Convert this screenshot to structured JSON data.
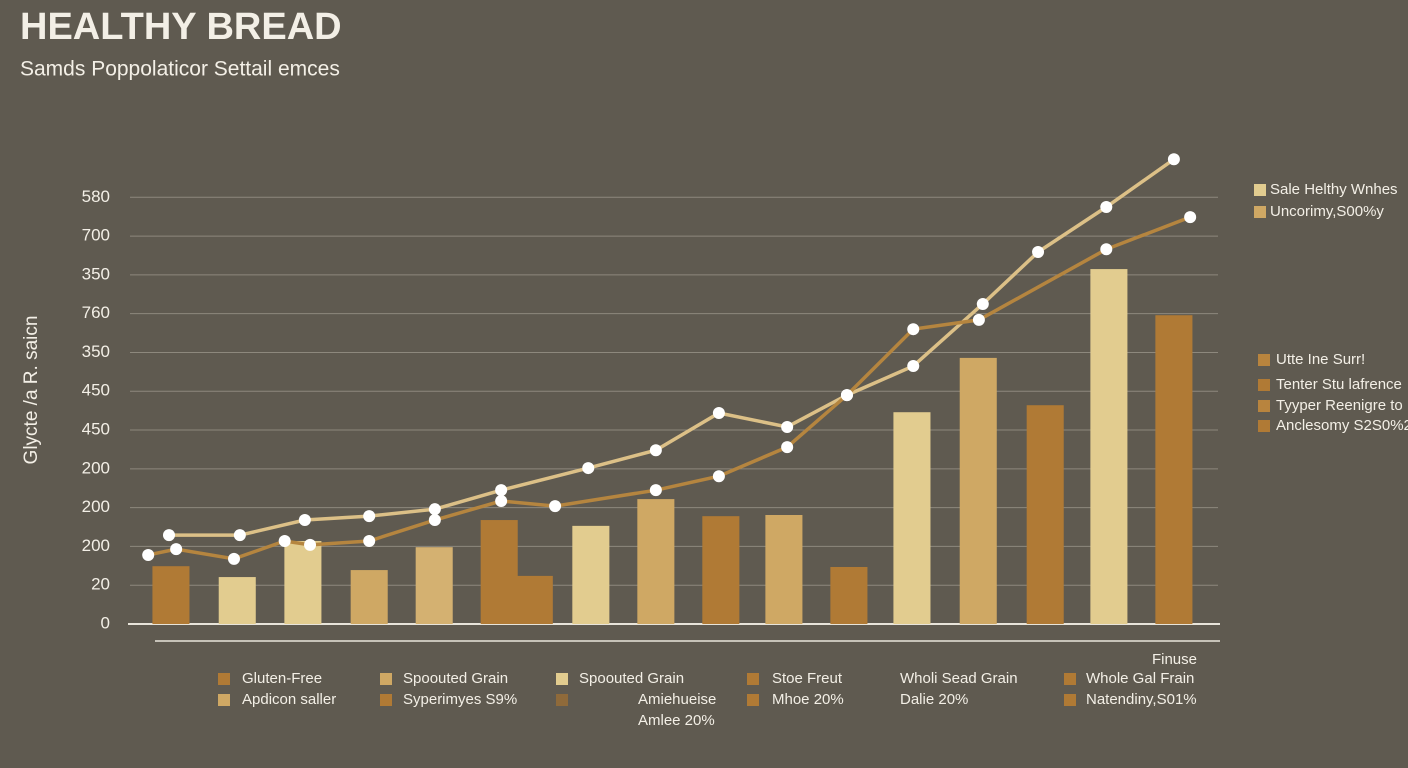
{
  "chart_data": {
    "type": "bar-line",
    "title": "HEALTHY BREAD",
    "subtitle": "Samds Poppolaticor Settail emces",
    "y_label": "Glycte /a R. saicn",
    "x_note": "Finuse",
    "xlim": [
      0,
      16.8
    ],
    "ylim": [
      0,
      12.4
    ],
    "yticks": [
      0,
      {
        "value": 1,
        "label": "20"
      },
      {
        "value": 2,
        "label": "200"
      },
      {
        "value": 3,
        "label": "200"
      },
      {
        "value": 4,
        "label": "200"
      },
      {
        "value": 5,
        "label": "450"
      },
      {
        "value": 6,
        "label": "450"
      },
      {
        "value": 7,
        "label": "350"
      },
      {
        "value": 8,
        "label": "760"
      },
      {
        "value": 9,
        "label": "350"
      },
      {
        "value": 10,
        "label": "700"
      },
      {
        "value": 11,
        "label": "580"
      }
    ],
    "grid": true,
    "bars": {
      "x": [
        0.63,
        1.65,
        2.66,
        3.68,
        4.68,
        5.68,
        6.22,
        7.09,
        8.09,
        9.09,
        10.06,
        11.06,
        12.03,
        13.05,
        14.08,
        15.06,
        16.06
      ],
      "values": [
        1.49,
        1.21,
        2.14,
        1.39,
        1.98,
        2.68,
        1.24,
        2.53,
        3.22,
        2.78,
        2.81,
        1.47,
        5.46,
        6.86,
        5.64,
        9.15,
        7.96
      ],
      "colors": [
        "#b07a35",
        "#e2cc8f",
        "#e2cc8f",
        "#cfa864",
        "#d4b171",
        "#b07a35",
        "#b07a35",
        "#e2cc8f",
        "#cfa864",
        "#b07a35",
        "#cfa864",
        "#b07a35",
        "#e2cc8f",
        "#cfa864",
        "#b07a35",
        "#e2cc8f",
        "#b07a35"
      ]
    },
    "series": [
      {
        "color": "#dcc087",
        "x": [
          0.6,
          1.69,
          2.69,
          3.68,
          4.69,
          5.71,
          7.05,
          8.09,
          9.06,
          10.11,
          11.03,
          12.05,
          13.12,
          13.97,
          15.02,
          16.06
        ],
        "values": [
          2.29,
          2.29,
          2.68,
          2.78,
          2.96,
          3.45,
          4.02,
          4.48,
          5.44,
          5.08,
          5.9,
          6.65,
          8.25,
          9.59,
          10.75,
          11.98
        ]
      },
      {
        "color": "#b5853f",
        "x": [
          0.28,
          0.71,
          1.6,
          2.38,
          2.77,
          3.68,
          4.69,
          5.71,
          6.54,
          8.09,
          9.06,
          10.11,
          11.03,
          12.05,
          13.06,
          15.02,
          16.31
        ],
        "values": [
          1.78,
          1.93,
          1.68,
          2.14,
          2.04,
          2.14,
          2.68,
          3.17,
          3.04,
          3.45,
          3.81,
          4.56,
          5.9,
          7.6,
          7.84,
          9.66,
          10.49
        ]
      }
    ],
    "legends": [
      {
        "items": [
          {
            "label": "Sale Helthy Wnhes",
            "color": "#e2cc8f"
          },
          {
            "label": "Uncorimy,S00%y",
            "color": "#cfa864"
          }
        ]
      },
      {
        "items": [
          {
            "label": "Utte Ine Surr!",
            "color": "#b8843e"
          },
          {
            "label": "Tenter Stu lafrence",
            "color": "#b07a35"
          },
          {
            "label": "Tyyper Reenigre to",
            "color": "#b8843e"
          },
          {
            "label": "Anclesomy S2S0%2",
            "color": "#b07a35"
          }
        ]
      },
      {
        "items": [
          {
            "label": "Gluten-Free",
            "color": "#b07a35"
          },
          {
            "label": "Spoouted Grain",
            "color": "#cfa864"
          },
          {
            "label": "Spoouted Grain",
            "color": "#e2cc8f"
          },
          {
            "label": "Stoe Freut",
            "color": "#b07a35"
          },
          {
            "label": "Wholi Sead Grain"
          },
          {
            "label": "Whole Gal Frain",
            "color": "#b07a35"
          },
          {
            "label": "Apdicon saller",
            "color": "#cfa864"
          },
          {
            "label": "Syperimyes S9%",
            "color": "#b07a35"
          },
          {
            "label": "Amiehueise",
            "color": "#8f6a3a"
          },
          {
            "label": "Mhoe 20%",
            "color": "#b07a35"
          },
          {
            "label": "Dalie 20%"
          },
          {
            "label": "Natendiny,S01%",
            "color": "#b07a35"
          },
          {
            "label": "Amlee 20%"
          }
        ]
      }
    ]
  }
}
